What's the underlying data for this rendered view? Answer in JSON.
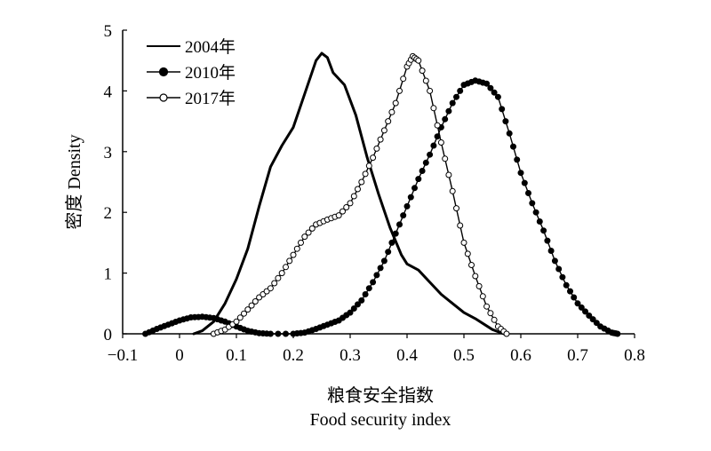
{
  "chart_data": {
    "type": "line",
    "title": "",
    "xlabel_cn": "粮食安全指数",
    "xlabel_en": "Food security index",
    "ylabel": "密度 Density",
    "xlim": [
      -0.1,
      0.8
    ],
    "ylim": [
      0,
      5
    ],
    "x_ticks": [
      "−0.1",
      "0",
      "0.1",
      "0.2",
      "0.3",
      "0.4",
      "0.5",
      "0.6",
      "0.7",
      "0.8"
    ],
    "x_tick_values": [
      -0.1,
      0,
      0.1,
      0.2,
      0.3,
      0.4,
      0.5,
      0.6,
      0.7,
      0.8
    ],
    "y_ticks": [
      "0",
      "1",
      "2",
      "3",
      "4",
      "5"
    ],
    "y_tick_values": [
      0,
      1,
      2,
      3,
      4,
      5
    ],
    "grid": false,
    "legend_position": "top-left",
    "series": [
      {
        "name": "2004年",
        "marker": "none",
        "color": "#000000",
        "points": [
          [
            0.025,
            0
          ],
          [
            0.04,
            0.05
          ],
          [
            0.06,
            0.2
          ],
          [
            0.08,
            0.5
          ],
          [
            0.1,
            0.9
          ],
          [
            0.12,
            1.4
          ],
          [
            0.14,
            2.1
          ],
          [
            0.16,
            2.75
          ],
          [
            0.18,
            3.1
          ],
          [
            0.2,
            3.4
          ],
          [
            0.22,
            3.95
          ],
          [
            0.24,
            4.5
          ],
          [
            0.25,
            4.62
          ],
          [
            0.26,
            4.55
          ],
          [
            0.27,
            4.3
          ],
          [
            0.29,
            4.1
          ],
          [
            0.31,
            3.6
          ],
          [
            0.33,
            2.9
          ],
          [
            0.35,
            2.3
          ],
          [
            0.37,
            1.75
          ],
          [
            0.39,
            1.3
          ],
          [
            0.4,
            1.15
          ],
          [
            0.42,
            1.05
          ],
          [
            0.44,
            0.85
          ],
          [
            0.46,
            0.65
          ],
          [
            0.48,
            0.5
          ],
          [
            0.5,
            0.35
          ],
          [
            0.52,
            0.25
          ],
          [
            0.55,
            0.07
          ],
          [
            0.57,
            0
          ]
        ]
      },
      {
        "name": "2010年",
        "marker": "filled-circle",
        "color": "#000000",
        "points": [
          [
            -0.06,
            0
          ],
          [
            -0.04,
            0.08
          ],
          [
            -0.02,
            0.15
          ],
          [
            0,
            0.22
          ],
          [
            0.02,
            0.27
          ],
          [
            0.04,
            0.28
          ],
          [
            0.06,
            0.26
          ],
          [
            0.08,
            0.2
          ],
          [
            0.1,
            0.12
          ],
          [
            0.12,
            0.05
          ],
          [
            0.14,
            0.01
          ],
          [
            0.16,
            0
          ],
          [
            0.2,
            0
          ],
          [
            0.22,
            0.02
          ],
          [
            0.24,
            0.08
          ],
          [
            0.26,
            0.15
          ],
          [
            0.28,
            0.22
          ],
          [
            0.3,
            0.35
          ],
          [
            0.32,
            0.55
          ],
          [
            0.34,
            0.85
          ],
          [
            0.36,
            1.2
          ],
          [
            0.38,
            1.65
          ],
          [
            0.4,
            2.1
          ],
          [
            0.42,
            2.55
          ],
          [
            0.44,
            2.95
          ],
          [
            0.46,
            3.4
          ],
          [
            0.48,
            3.8
          ],
          [
            0.5,
            4.1
          ],
          [
            0.52,
            4.17
          ],
          [
            0.54,
            4.12
          ],
          [
            0.56,
            3.9
          ],
          [
            0.58,
            3.3
          ],
          [
            0.6,
            2.65
          ],
          [
            0.62,
            2.15
          ],
          [
            0.64,
            1.7
          ],
          [
            0.66,
            1.2
          ],
          [
            0.68,
            0.8
          ],
          [
            0.7,
            0.5
          ],
          [
            0.72,
            0.3
          ],
          [
            0.74,
            0.12
          ],
          [
            0.76,
            0.02
          ],
          [
            0.77,
            0
          ]
        ]
      },
      {
        "name": "2017年",
        "marker": "open-circle",
        "color": "#000000",
        "points": [
          [
            0.06,
            0
          ],
          [
            0.08,
            0.07
          ],
          [
            0.1,
            0.2
          ],
          [
            0.12,
            0.4
          ],
          [
            0.14,
            0.6
          ],
          [
            0.16,
            0.75
          ],
          [
            0.18,
            1.0
          ],
          [
            0.2,
            1.3
          ],
          [
            0.22,
            1.6
          ],
          [
            0.24,
            1.8
          ],
          [
            0.26,
            1.88
          ],
          [
            0.28,
            1.95
          ],
          [
            0.3,
            2.15
          ],
          [
            0.32,
            2.5
          ],
          [
            0.34,
            2.9
          ],
          [
            0.36,
            3.35
          ],
          [
            0.38,
            3.8
          ],
          [
            0.4,
            4.4
          ],
          [
            0.41,
            4.57
          ],
          [
            0.42,
            4.5
          ],
          [
            0.44,
            4.0
          ],
          [
            0.46,
            3.15
          ],
          [
            0.48,
            2.35
          ],
          [
            0.5,
            1.5
          ],
          [
            0.52,
            0.95
          ],
          [
            0.54,
            0.45
          ],
          [
            0.56,
            0.12
          ],
          [
            0.575,
            0
          ]
        ]
      }
    ]
  }
}
